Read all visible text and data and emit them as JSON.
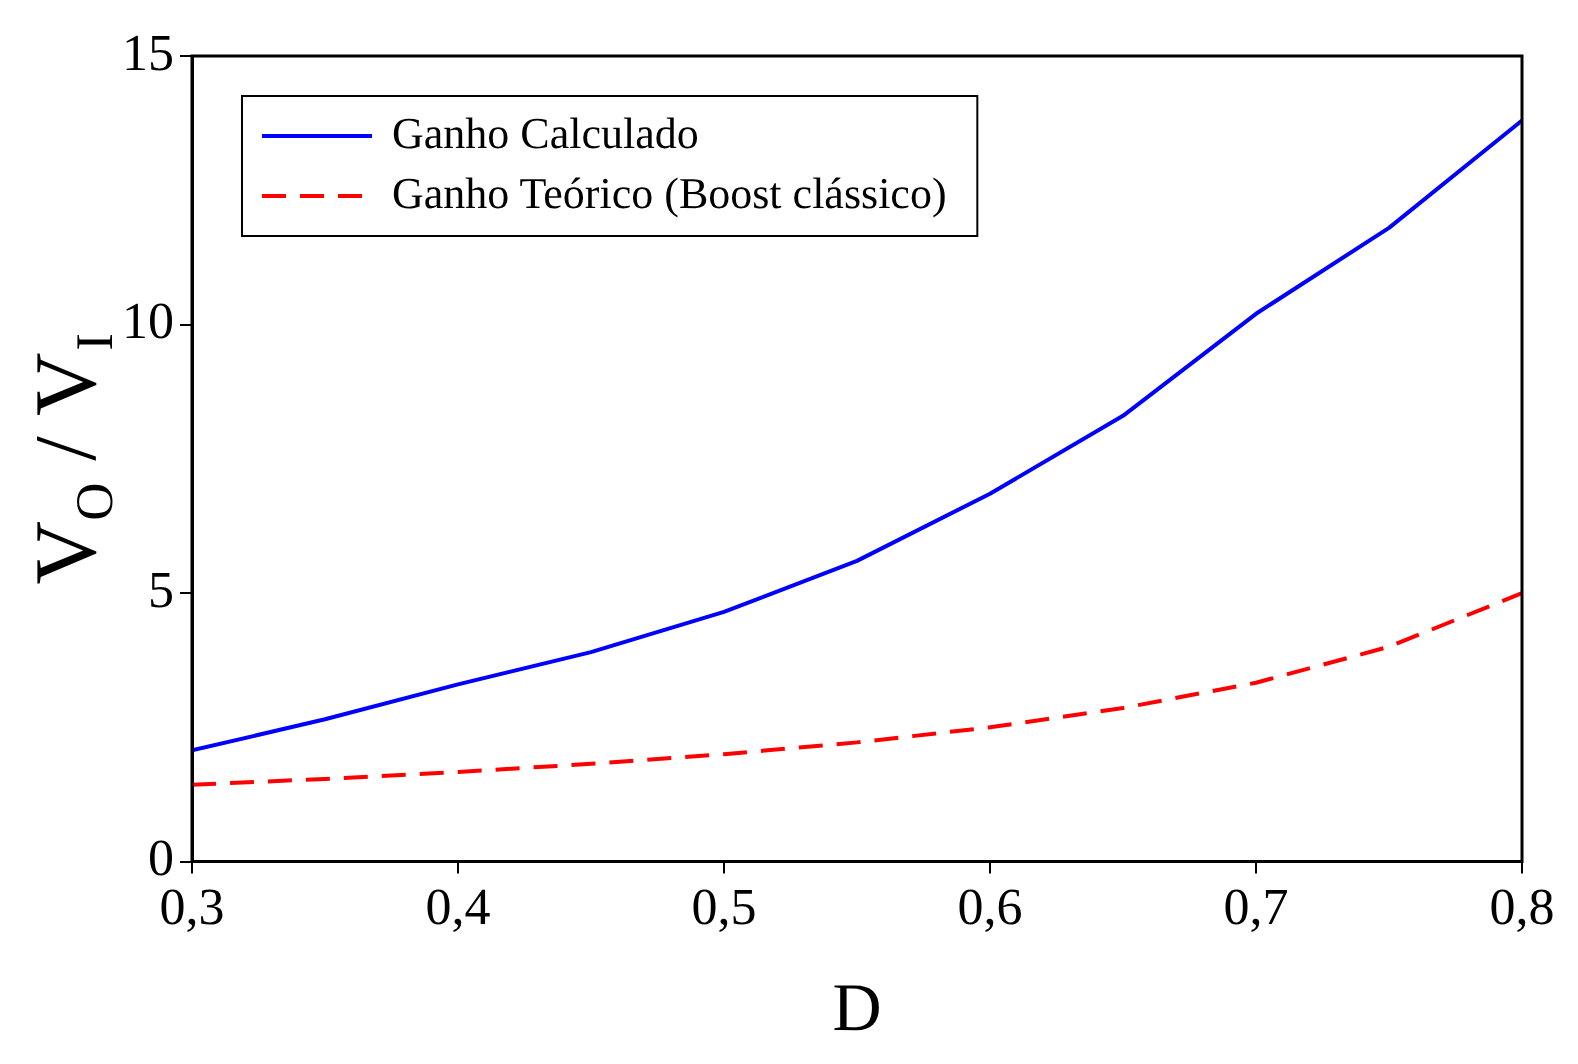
{
  "chart_data": {
    "type": "line",
    "xlabel": "D",
    "ylabel": "V$_{O}$ / V$_{I}$",
    "x": [
      0.3,
      0.35,
      0.4,
      0.45,
      0.5,
      0.55,
      0.6,
      0.65,
      0.7,
      0.75,
      0.8
    ],
    "series": [
      {
        "name": "Ganho Calculado",
        "color": "#0000ff",
        "line_style": "solid",
        "values": [
          2.07,
          2.65,
          3.3,
          3.9,
          4.65,
          5.6,
          6.85,
          8.3,
          10.2,
          11.8,
          13.8
        ]
      },
      {
        "name": "Ganho Teórico (Boost clássico)",
        "color": "#ff0000",
        "line_style": "dashed",
        "values": [
          1.43,
          1.54,
          1.67,
          1.82,
          2.0,
          2.22,
          2.5,
          2.86,
          3.33,
          4.0,
          5.0
        ]
      }
    ],
    "xlim": [
      0.3,
      0.8
    ],
    "xticks": [
      {
        "value": 0.3,
        "label": "0,3"
      },
      {
        "value": 0.4,
        "label": "0,4"
      },
      {
        "value": 0.5,
        "label": "0,5"
      },
      {
        "value": 0.6,
        "label": "0,6"
      },
      {
        "value": 0.7,
        "label": "0,7"
      },
      {
        "value": 0.8,
        "label": "0,8"
      }
    ],
    "ylim": [
      0,
      15
    ],
    "yticks": [
      0,
      5,
      10,
      15
    ],
    "grid": false,
    "legend": "top left",
    "marker": "none"
  }
}
